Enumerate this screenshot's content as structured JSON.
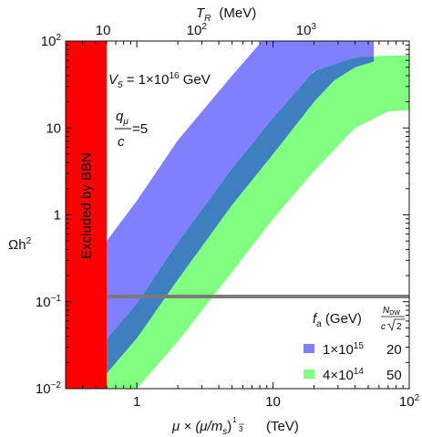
{
  "chart_data": {
    "type": "area",
    "title": "",
    "x_axis": {
      "label_var": "μ × (μ/m",
      "label_sub": "s",
      "label_close": ")",
      "exp_num": "1",
      "exp_den": "3",
      "label_unit": "(TeV)",
      "scale": "log",
      "range": [
        0.3,
        100
      ],
      "ticks": [
        {
          "value": 1,
          "label": "1"
        },
        {
          "value": 10,
          "label": "10"
        },
        {
          "value": 100,
          "label_base": "10",
          "label_exp": "2"
        }
      ]
    },
    "x2_axis": {
      "label_var": "T",
      "label_sub": "R",
      "label_unit": "(MeV)",
      "scale": "log",
      "ticks": [
        {
          "x_at": 0.565,
          "label": "10"
        },
        {
          "x_at": 2.75,
          "label_base": "10",
          "label_exp": "2"
        },
        {
          "x_at": 17.5,
          "label_base": "10",
          "label_exp": "3"
        }
      ]
    },
    "y_axis": {
      "label_main": "Ωh",
      "label_exp": "2",
      "scale": "log",
      "range": [
        0.01,
        100
      ],
      "ticks": [
        {
          "value": 0.01,
          "label_base": "10",
          "label_exp": "−2"
        },
        {
          "value": 0.1,
          "label_base": "10",
          "label_exp": "−1"
        },
        {
          "value": 1,
          "label": "1"
        },
        {
          "value": 10,
          "label": "10"
        },
        {
          "value": 100,
          "label_base": "10",
          "label_exp": "2"
        }
      ]
    },
    "grid": false,
    "excluded_region": {
      "label": "Excluded by BBN",
      "x_range": [
        0.3,
        0.6
      ],
      "color": "#ff0000"
    },
    "reference_line": {
      "y": 0.115,
      "color": "#7a7a7a"
    },
    "annotations": {
      "v5_prefix": "V",
      "v5_sub": "5",
      "v5_value": " = 1×10",
      "v5_exp": "16",
      "v5_unit": " GeV",
      "ratio_num_var": "q",
      "ratio_num_sub": "μ",
      "ratio_den": "c",
      "ratio_value": "=5"
    },
    "legend": {
      "placement": "bottom-right",
      "header_fa_var": "f",
      "header_fa_sub": "a",
      "header_fa_unit": " (GeV)",
      "header_ndw_num": "N",
      "header_ndw_sub": "DW",
      "header_ndw_den": "c",
      "header_ndw_root": "2",
      "entries": [
        {
          "fa_base": "1×10",
          "fa_exp": "15",
          "ndw": "20",
          "color": "#8080ff"
        },
        {
          "fa_base": "4×10",
          "fa_exp": "14",
          "ndw": "50",
          "color": "#80ff80"
        }
      ]
    },
    "series": [
      {
        "color": "#8080ff",
        "x": [
          0.6,
          1,
          2,
          5,
          10,
          20,
          28,
          40,
          55
        ],
        "upper": [
          0.5,
          1.45,
          7.2,
          40,
          140,
          450,
          700,
          900,
          1000
        ],
        "lower": [
          0.015,
          0.038,
          0.18,
          1.3,
          5,
          20,
          35,
          50,
          58
        ]
      },
      {
        "color": "#80ff80",
        "x": [
          0.6,
          1,
          2,
          5,
          10,
          20,
          40,
          70,
          100
        ],
        "upper": [
          0.037,
          0.095,
          0.48,
          3.4,
          13,
          45,
          65,
          68,
          68
        ],
        "lower": [
          0.01,
          0.01,
          0.035,
          0.22,
          0.9,
          3.2,
          10,
          15.5,
          16
        ]
      }
    ],
    "overlap_color": "#3d7fbf"
  }
}
